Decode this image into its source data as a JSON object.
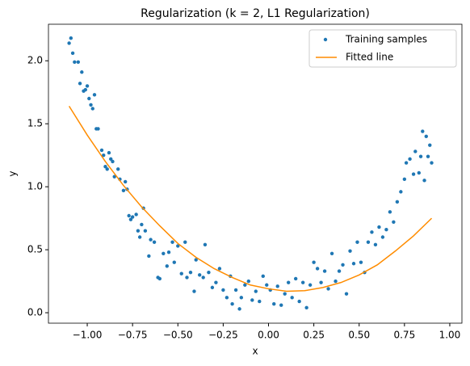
{
  "chart_data": {
    "type": "scatter",
    "title": "Regularization (k = 2, L1 Regularization)",
    "xlabel": "x",
    "ylabel": "y",
    "xlim": [
      -1.214,
      1.067
    ],
    "ylim": [
      -0.083,
      2.29
    ],
    "xticks": [
      {
        "value": -1.0,
        "label": "−1.00"
      },
      {
        "value": -0.75,
        "label": "−0.75"
      },
      {
        "value": -0.5,
        "label": "−0.50"
      },
      {
        "value": -0.25,
        "label": "−0.25"
      },
      {
        "value": 0,
        "label": "0.00"
      },
      {
        "value": 0.25,
        "label": "0.25"
      },
      {
        "value": 0.5,
        "label": "0.50"
      },
      {
        "value": 0.75,
        "label": "0.75"
      },
      {
        "value": 1.0,
        "label": "1.00"
      }
    ],
    "yticks": [
      {
        "value": 0,
        "label": "0.0"
      },
      {
        "value": 0.5,
        "label": "0.5"
      },
      {
        "value": 1.0,
        "label": "1.0"
      },
      {
        "value": 1.5,
        "label": "1.5"
      },
      {
        "value": 2.0,
        "label": "2.0"
      }
    ],
    "legend": "upper right",
    "series": [
      {
        "name": "Training samples",
        "type": "scatter",
        "color": "#1f77b4",
        "x": [
          -1.1,
          -1.09,
          -1.08,
          -1.07,
          -1.05,
          -1.04,
          -1.03,
          -1.02,
          -1.01,
          -1.0,
          -0.99,
          -0.98,
          -0.97,
          -0.96,
          -0.95,
          -0.94,
          -0.92,
          -0.91,
          -0.9,
          -0.89,
          -0.88,
          -0.87,
          -0.86,
          -0.85,
          -0.83,
          -0.82,
          -0.8,
          -0.79,
          -0.78,
          -0.77,
          -0.76,
          -0.75,
          -0.73,
          -0.72,
          -0.71,
          -0.7,
          -0.69,
          -0.68,
          -0.66,
          -0.65,
          -0.63,
          -0.61,
          -0.6,
          -0.58,
          -0.56,
          -0.55,
          -0.53,
          -0.52,
          -0.5,
          -0.48,
          -0.46,
          -0.45,
          -0.43,
          -0.41,
          -0.4,
          -0.38,
          -0.36,
          -0.35,
          -0.33,
          -0.31,
          -0.29,
          -0.27,
          -0.25,
          -0.23,
          -0.21,
          -0.2,
          -0.18,
          -0.16,
          -0.15,
          -0.13,
          -0.11,
          -0.09,
          -0.07,
          -0.05,
          -0.03,
          -0.01,
          0.01,
          0.03,
          0.05,
          0.07,
          0.09,
          0.11,
          0.13,
          0.15,
          0.17,
          0.19,
          0.21,
          0.23,
          0.25,
          0.27,
          0.29,
          0.31,
          0.33,
          0.35,
          0.37,
          0.39,
          0.41,
          0.43,
          0.45,
          0.47,
          0.49,
          0.51,
          0.53,
          0.55,
          0.57,
          0.59,
          0.61,
          0.63,
          0.65,
          0.67,
          0.69,
          0.71,
          0.73,
          0.75,
          0.76,
          0.78,
          0.8,
          0.81,
          0.83,
          0.84,
          0.85,
          0.86,
          0.87,
          0.88,
          0.89,
          0.9
        ],
        "values": [
          2.14,
          2.18,
          2.06,
          1.99,
          1.99,
          1.82,
          1.91,
          1.76,
          1.77,
          1.8,
          1.7,
          1.65,
          1.62,
          1.73,
          1.46,
          1.46,
          1.29,
          1.25,
          1.16,
          1.14,
          1.27,
          1.22,
          1.2,
          1.08,
          1.14,
          1.06,
          0.97,
          1.04,
          0.98,
          0.77,
          0.74,
          0.76,
          0.78,
          0.65,
          0.6,
          0.7,
          0.83,
          0.65,
          0.45,
          0.58,
          0.56,
          0.28,
          0.27,
          0.47,
          0.37,
          0.48,
          0.56,
          0.4,
          0.53,
          0.31,
          0.56,
          0.28,
          0.32,
          0.17,
          0.42,
          0.3,
          0.28,
          0.54,
          0.32,
          0.2,
          0.24,
          0.35,
          0.18,
          0.12,
          0.29,
          0.07,
          0.18,
          0.03,
          0.12,
          0.22,
          0.25,
          0.1,
          0.17,
          0.09,
          0.29,
          0.22,
          0.18,
          0.07,
          0.21,
          0.06,
          0.15,
          0.24,
          0.12,
          0.27,
          0.09,
          0.24,
          0.04,
          0.22,
          0.4,
          0.35,
          0.24,
          0.33,
          0.19,
          0.47,
          0.25,
          0.33,
          0.38,
          0.15,
          0.49,
          0.39,
          0.56,
          0.4,
          0.32,
          0.56,
          0.64,
          0.54,
          0.68,
          0.6,
          0.66,
          0.8,
          0.72,
          0.88,
          0.96,
          1.06,
          1.19,
          1.22,
          1.1,
          1.28,
          1.11,
          1.24,
          1.44,
          1.05,
          1.4,
          1.24,
          1.33,
          1.19
        ]
      },
      {
        "name": "Fitted line",
        "type": "line",
        "color": "#ff8c00",
        "x": [
          -1.1,
          -1.0,
          -0.9,
          -0.8,
          -0.7,
          -0.6,
          -0.5,
          -0.4,
          -0.3,
          -0.2,
          -0.1,
          0.0,
          0.1,
          0.2,
          0.3,
          0.4,
          0.5,
          0.6,
          0.7,
          0.8,
          0.9
        ],
        "values": [
          1.64,
          1.41,
          1.2,
          1.01,
          0.84,
          0.69,
          0.55,
          0.44,
          0.35,
          0.28,
          0.22,
          0.19,
          0.17,
          0.175,
          0.2,
          0.24,
          0.3,
          0.38,
          0.49,
          0.61,
          0.75
        ]
      }
    ]
  }
}
